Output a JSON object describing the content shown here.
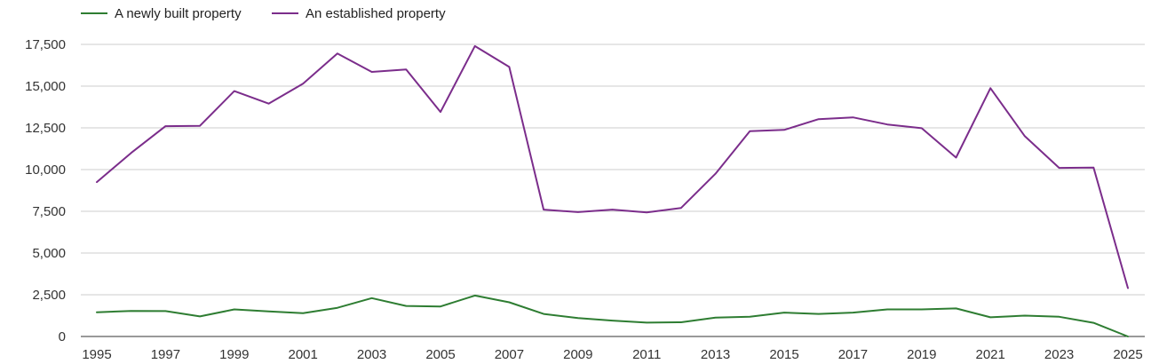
{
  "chart_data": {
    "type": "line",
    "title": "",
    "xlabel": "",
    "ylabel": "",
    "ylim": [
      0,
      17500
    ],
    "grid": true,
    "legend_position": "top-left",
    "x": [
      1995,
      1996,
      1997,
      1998,
      1999,
      2000,
      2001,
      2002,
      2003,
      2004,
      2005,
      2006,
      2007,
      2008,
      2009,
      2010,
      2011,
      2012,
      2013,
      2014,
      2015,
      2016,
      2017,
      2018,
      2019,
      2020,
      2021,
      2022,
      2023,
      2024,
      2025
    ],
    "x_tick_labels": [
      "1995",
      "1997",
      "1999",
      "2001",
      "2003",
      "2005",
      "2007",
      "2009",
      "2011",
      "2013",
      "2015",
      "2017",
      "2019",
      "2021",
      "2023",
      "2025"
    ],
    "y_tick_labels": [
      "0",
      "2,500",
      "5,000",
      "7,500",
      "10,000",
      "12,500",
      "15,000",
      "17,500"
    ],
    "y_ticks": [
      0,
      2500,
      5000,
      7500,
      10000,
      12500,
      15000,
      17500
    ],
    "series": [
      {
        "name": "A newly built property",
        "color": "#2e7d32",
        "values": [
          1450,
          1530,
          1520,
          1200,
          1620,
          1500,
          1400,
          1720,
          2300,
          1830,
          1800,
          2450,
          2050,
          1350,
          1100,
          950,
          830,
          850,
          1130,
          1180,
          1430,
          1350,
          1430,
          1620,
          1620,
          1680,
          1150,
          1250,
          1180,
          820,
          0
        ]
      },
      {
        "name": "An established property",
        "color": "#7b2d8b",
        "values": [
          9250,
          11000,
          12600,
          12620,
          14700,
          13950,
          15150,
          16950,
          15850,
          16000,
          13450,
          17400,
          16150,
          7600,
          7450,
          7600,
          7430,
          7700,
          9750,
          12300,
          12380,
          13020,
          13130,
          12700,
          12480,
          10720,
          14880,
          12000,
          10100,
          10120,
          2900
        ]
      }
    ]
  }
}
